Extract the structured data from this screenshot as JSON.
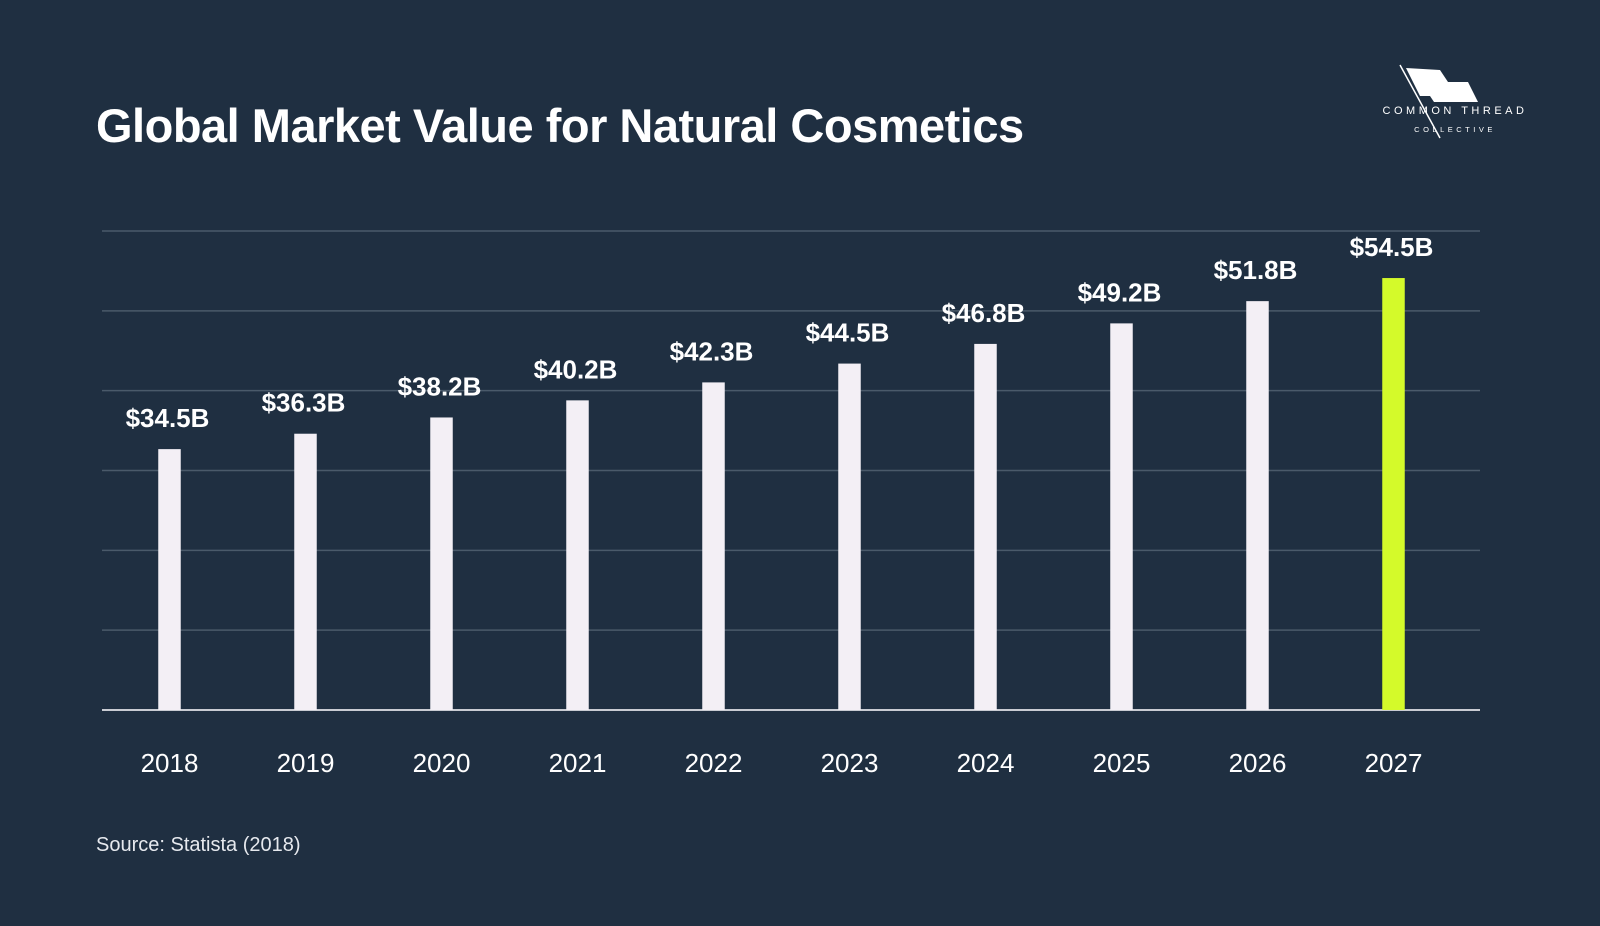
{
  "title": "Global Market Value for Natural Cosmetics",
  "source": "Source: Statista (2018)",
  "logo": {
    "line1": "COMMON THREAD",
    "line2": "COLLECTIVE"
  },
  "colors": {
    "background": "#1f2f41",
    "bar": "#f3eff5",
    "highlight": "#d4fa2a",
    "grid": "#4a5a6a"
  },
  "chart_data": {
    "type": "bar",
    "title": "Global Market Value for Natural Cosmetics",
    "xlabel": "",
    "ylabel": "",
    "categories": [
      "2018",
      "2019",
      "2020",
      "2021",
      "2022",
      "2023",
      "2024",
      "2025",
      "2026",
      "2027"
    ],
    "values": [
      34.5,
      36.3,
      38.2,
      40.2,
      42.3,
      44.5,
      46.8,
      49.2,
      51.8,
      54.5
    ],
    "labels": [
      "$34.5B",
      "$36.3B",
      "$38.2B",
      "$40.2B",
      "$42.3B",
      "$44.5B",
      "$46.8B",
      "$49.2B",
      "$51.8B",
      "$54.5B"
    ],
    "highlight_index": 9,
    "ylim": [
      4,
      60
    ],
    "gridlines": 7,
    "grid": true,
    "unit": "USD billions"
  }
}
